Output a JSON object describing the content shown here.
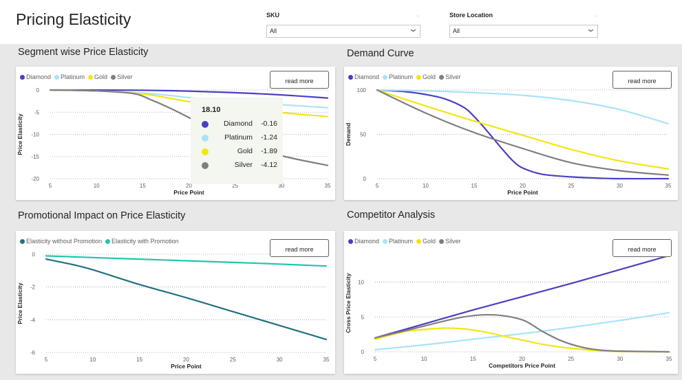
{
  "page": {
    "title": "Pricing Elasticity",
    "filters": [
      {
        "label": "SKU",
        "value": "All"
      },
      {
        "label": "Store Location",
        "value": "All"
      }
    ]
  },
  "colors": {
    "diamond": "#4b3fbf",
    "platinum": "#a8e3f8",
    "gold": "#f4e511",
    "silver": "#7f7f7f",
    "without_promo": "#237080",
    "with_promo": "#23c4ae"
  },
  "read_more_label": "read more",
  "tooltip": {
    "title": "18.10",
    "rows": [
      {
        "name": "Diamond",
        "value": "-0.16"
      },
      {
        "name": "Platinum",
        "value": "-1.24"
      },
      {
        "name": "Gold",
        "value": "-1.89"
      },
      {
        "name": "Silver",
        "value": "-4.12"
      }
    ]
  },
  "chart_data": [
    {
      "id": "segment",
      "type": "line",
      "title": "Segment wise Price Elasticity",
      "xlabel": "Price Point",
      "ylabel": "Price Elasticity",
      "xlim": [
        5,
        35
      ],
      "ylim": [
        -20,
        0
      ],
      "xticks": [
        5,
        10,
        15,
        20,
        25,
        30,
        35
      ],
      "yticks": [
        0,
        -5,
        -10,
        -15,
        -20
      ],
      "grid": true,
      "legend": "top-left",
      "series": [
        {
          "name": "Diamond",
          "color": "#4b3fbf",
          "x": [
            5,
            10,
            15,
            18,
            20,
            25,
            30,
            35
          ],
          "y": [
            0,
            0,
            -0.05,
            -0.16,
            -0.25,
            -0.6,
            -1.1,
            -1.8
          ]
        },
        {
          "name": "Platinum",
          "color": "#a8e3f8",
          "x": [
            5,
            10,
            15,
            18,
            20,
            25,
            30,
            35
          ],
          "y": [
            0,
            -0.2,
            -0.7,
            -1.24,
            -1.7,
            -2.6,
            -3.3,
            -4
          ]
        },
        {
          "name": "Gold",
          "color": "#f4e511",
          "x": [
            5,
            10,
            15,
            18,
            20,
            25,
            30,
            35
          ],
          "y": [
            0,
            -0.2,
            -0.9,
            -1.89,
            -2.6,
            -4,
            -5.1,
            -6
          ]
        },
        {
          "name": "Silver",
          "color": "#7f7f7f",
          "x": [
            5,
            10,
            14,
            16,
            18,
            20,
            25,
            30,
            35
          ],
          "y": [
            0,
            -0.2,
            -0.8,
            -2.3,
            -4.12,
            -6.2,
            -11.5,
            -14.8,
            -17
          ]
        }
      ]
    },
    {
      "id": "demand",
      "type": "line",
      "title": "Demand Curve",
      "xlabel": "Price Point",
      "ylabel": "Demand",
      "xlim": [
        5,
        35
      ],
      "ylim": [
        0,
        100
      ],
      "xticks": [
        5,
        10,
        15,
        20,
        25,
        30,
        35
      ],
      "yticks": [
        0,
        50,
        100
      ],
      "grid": true,
      "legend": "top-left",
      "series": [
        {
          "name": "Diamond",
          "color": "#4b3fbf",
          "x": [
            5,
            8,
            10,
            12,
            14,
            15,
            16,
            17,
            18,
            19,
            20,
            22,
            25,
            28,
            30,
            35
          ],
          "y": [
            100,
            98,
            95,
            90,
            80,
            70,
            58,
            45,
            32,
            20,
            12,
            5,
            2,
            0.5,
            0,
            0
          ]
        },
        {
          "name": "Platinum",
          "color": "#a8e3f8",
          "x": [
            5,
            10,
            15,
            20,
            25,
            30,
            35
          ],
          "y": [
            100,
            99,
            97,
            94,
            88,
            78,
            62
          ]
        },
        {
          "name": "Gold",
          "color": "#f4e511",
          "x": [
            5,
            10,
            15,
            20,
            25,
            30,
            35
          ],
          "y": [
            100,
            82,
            65,
            49,
            33,
            20,
            11
          ]
        },
        {
          "name": "Silver",
          "color": "#7f7f7f",
          "x": [
            5,
            10,
            15,
            20,
            25,
            30,
            35
          ],
          "y": [
            100,
            74,
            52,
            34,
            18,
            9,
            4
          ]
        }
      ]
    },
    {
      "id": "promo",
      "type": "line",
      "title": "Promotional Impact on Price Elasticity",
      "xlabel": "Price Point",
      "ylabel": "Price Elasticity",
      "xlim": [
        5,
        35
      ],
      "ylim": [
        -6,
        0
      ],
      "xticks": [
        5,
        10,
        15,
        20,
        25,
        30,
        35
      ],
      "yticks": [
        0,
        -2,
        -4,
        -6
      ],
      "grid": true,
      "legend": "top-left",
      "series": [
        {
          "name": "Elasticity without Promotion",
          "color": "#237080",
          "x": [
            5,
            8,
            10,
            15,
            20,
            25,
            30,
            35
          ],
          "y": [
            -0.3,
            -0.65,
            -0.95,
            -1.85,
            -2.65,
            -3.5,
            -4.35,
            -5.2
          ]
        },
        {
          "name": "Elasticity with Promotion",
          "color": "#23c4ae",
          "x": [
            5,
            10,
            15,
            20,
            25,
            30,
            35
          ],
          "y": [
            -0.1,
            -0.2,
            -0.3,
            -0.4,
            -0.5,
            -0.6,
            -0.72
          ]
        }
      ]
    },
    {
      "id": "competitor",
      "type": "line",
      "title": "Competitor Analysis",
      "xlabel": "Competitors Price Point",
      "ylabel": "Cross Price Elasticity",
      "xlim": [
        5,
        35
      ],
      "ylim": [
        0,
        14
      ],
      "xticks": [
        5,
        10,
        15,
        20,
        25,
        30,
        35
      ],
      "yticks": [
        0,
        5,
        10
      ],
      "grid": true,
      "legend": "top-left",
      "series": [
        {
          "name": "Diamond",
          "color": "#4b3fbf",
          "x": [
            5,
            10,
            15,
            20,
            25,
            30,
            35
          ],
          "y": [
            2,
            4,
            6,
            7.9,
            9.8,
            11.8,
            13.8
          ]
        },
        {
          "name": "Platinum",
          "color": "#a8e3f8",
          "x": [
            5,
            10,
            15,
            20,
            25,
            30,
            35
          ],
          "y": [
            0.3,
            1,
            1.8,
            2.6,
            3.5,
            4.5,
            5.6
          ]
        },
        {
          "name": "Gold",
          "color": "#f4e511",
          "x": [
            5,
            8,
            10,
            12,
            14,
            16,
            18,
            20,
            22,
            25,
            28,
            30,
            35
          ],
          "y": [
            1.8,
            2.9,
            3.2,
            3.4,
            3.3,
            2.9,
            2.3,
            1.7,
            1.1,
            0.5,
            0.15,
            0.05,
            0
          ]
        },
        {
          "name": "Silver",
          "color": "#7f7f7f",
          "x": [
            5,
            8,
            10,
            12,
            14,
            16,
            18,
            20,
            21,
            22,
            24,
            26,
            28,
            30,
            35
          ],
          "y": [
            2,
            3,
            3.7,
            4.4,
            5,
            5.3,
            5.2,
            4.6,
            3.9,
            3,
            1.6,
            0.7,
            0.25,
            0.1,
            0
          ]
        }
      ]
    }
  ]
}
